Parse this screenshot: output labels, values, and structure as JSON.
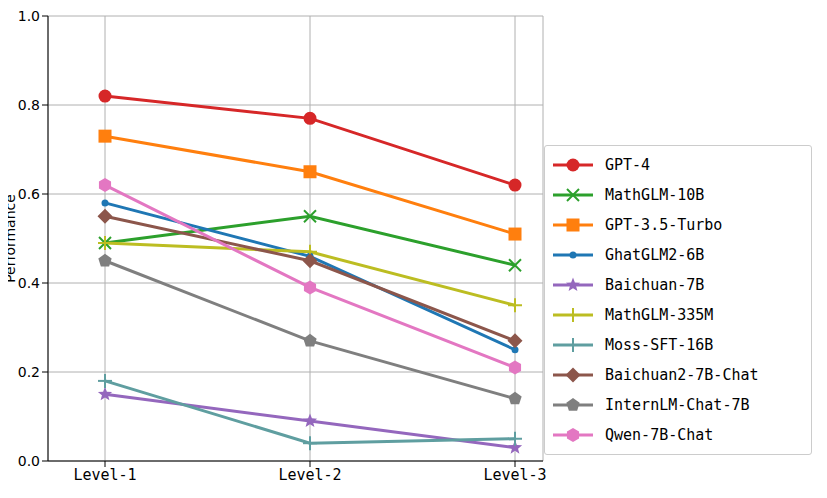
{
  "chart_data": {
    "type": "line",
    "categories": [
      "Level-1",
      "Level-2",
      "Level-3"
    ],
    "y_label": "Performance",
    "ylim": [
      0,
      1
    ],
    "yticks": [
      {
        "value": 0,
        "label": "0.0"
      },
      0.2,
      0.4,
      0.6,
      0.8,
      {
        "value": 1,
        "label": "1.0"
      }
    ],
    "grid": true,
    "legend": "right",
    "series": [
      {
        "name": "GPT-4",
        "color": "#d62728",
        "marker": "circle",
        "values": [
          0.82,
          0.77,
          0.62
        ]
      },
      {
        "name": "MathGLM-10B",
        "color": "#2ca02c",
        "marker": "x",
        "values": [
          0.49,
          0.55,
          0.44
        ]
      },
      {
        "name": "GPT-3.5-Turbo",
        "color": "#ff7f0e",
        "marker": "square",
        "values": [
          0.73,
          0.65,
          0.51
        ]
      },
      {
        "name": "GhatGLM2-6B",
        "color": "#1f77b4",
        "marker": "point",
        "values": [
          0.58,
          0.46,
          0.25
        ]
      },
      {
        "name": "Baichuan-7B",
        "color": "#9467bd",
        "marker": "star",
        "values": [
          0.15,
          0.09,
          0.03
        ]
      },
      {
        "name": "MathGLM-335M",
        "color": "#bcbd22",
        "marker": "plus",
        "values": [
          0.49,
          0.47,
          0.35
        ]
      },
      {
        "name": "Moss-SFT-16B",
        "color": "#5f9ea0",
        "marker": "plus",
        "values": [
          0.18,
          0.04,
          0.05
        ]
      },
      {
        "name": "Baichuan2-7B-Chat",
        "color": "#8c564b",
        "marker": "diamond",
        "values": [
          0.55,
          0.45,
          0.27
        ]
      },
      {
        "name": "InternLM-Chat-7B",
        "color": "#7f7f7f",
        "marker": "pentagon",
        "values": [
          0.45,
          0.27,
          0.14
        ]
      },
      {
        "name": "Qwen-7B-Chat",
        "color": "#e377c2",
        "marker": "hexagon",
        "values": [
          0.62,
          0.39,
          0.21
        ]
      }
    ]
  }
}
